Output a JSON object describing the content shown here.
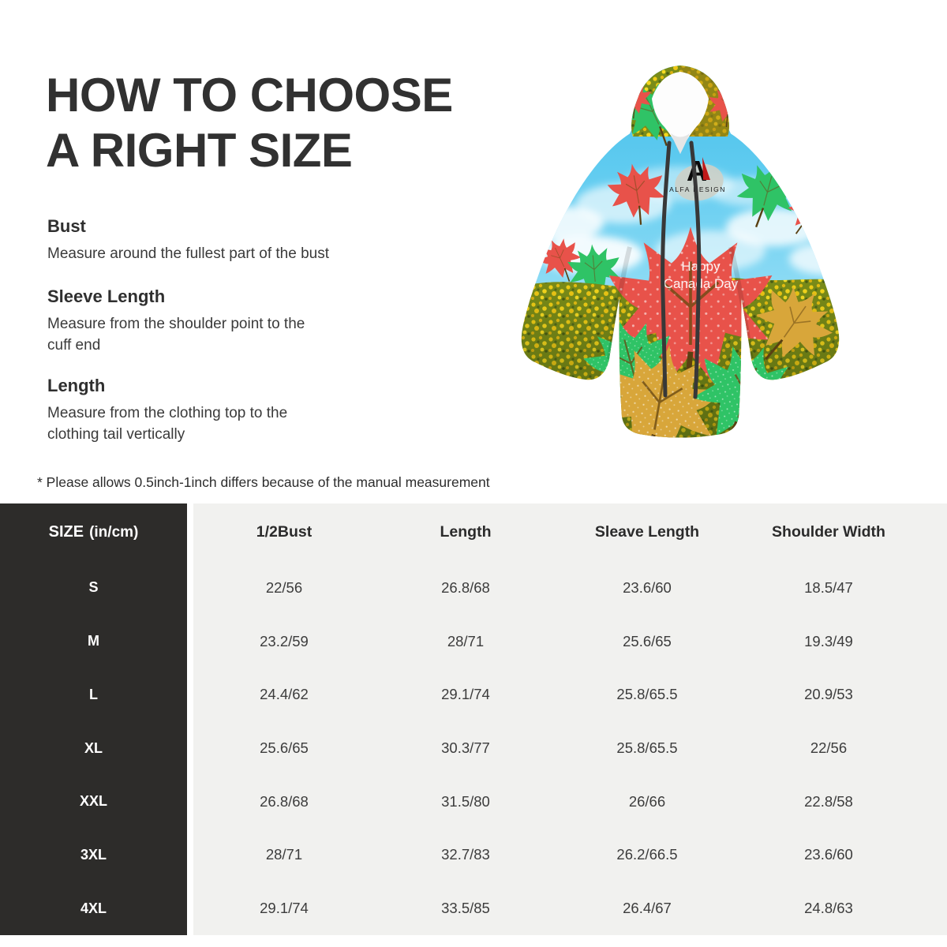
{
  "guide": {
    "title_line1": "HOW TO CHOOSE",
    "title_line2": "A RIGHT SIZE",
    "sections": [
      {
        "heading": "Bust",
        "lines": [
          "Measure around the fullest part of the bust"
        ]
      },
      {
        "heading": "Sleeve Length",
        "lines": [
          "Measure from the shoulder point to the",
          "cuff end"
        ]
      },
      {
        "heading": "Length",
        "lines": [
          "Measure from the clothing top to the",
          "clothing tail vertically"
        ]
      }
    ],
    "note": "* Please allows 0.5inch-1inch differs because of the  manual measurement"
  },
  "product_image": {
    "type": "hoodie-mockup",
    "print_text": {
      "line1": "Happy",
      "line2": "Canada Day"
    },
    "logo": {
      "monogram": "A",
      "brand": "ALFA DESIGN"
    },
    "palette": {
      "sky_blue": "#55c5ec",
      "field_yellow": "#eec915",
      "leaf_red": "#e8524a",
      "leaf_green": "#2fc366",
      "leaf_gold": "#d8a63a",
      "drawstring_gray": "#383838",
      "hood_gold": "#c9981c"
    }
  },
  "size_table": {
    "header": {
      "size_label": "SIZE",
      "size_unit": "(in/cm)",
      "columns": [
        "1/2Bust",
        "Length",
        "Sleave Length",
        "Shoulder Width"
      ]
    },
    "rows": [
      {
        "size": "S",
        "values": [
          "22/56",
          "26.8/68",
          "23.6/60",
          "18.5/47"
        ]
      },
      {
        "size": "M",
        "values": [
          "23.2/59",
          "28/71",
          "25.6/65",
          "19.3/49"
        ]
      },
      {
        "size": "L",
        "values": [
          "24.4/62",
          "29.1/74",
          "25.8/65.5",
          "20.9/53"
        ]
      },
      {
        "size": "XL",
        "values": [
          "25.6/65",
          "30.3/77",
          "25.8/65.5",
          "22/56"
        ]
      },
      {
        "size": "XXL",
        "values": [
          "26.8/68",
          "31.5/80",
          "26/66",
          "22.8/58"
        ]
      },
      {
        "size": "3XL",
        "values": [
          "28/71",
          "32.7/83",
          "26.2/66.5",
          "23.6/60"
        ]
      },
      {
        "size": "4XL",
        "values": [
          "29.1/74",
          "33.5/85",
          "26.4/67",
          "24.8/63"
        ]
      }
    ]
  },
  "colors": {
    "table_dark": "#2d2c2a",
    "table_gray": "#f1f1ef",
    "text_primary": "#313131",
    "text_secondary": "#3a3a3a",
    "header_text_on_dark": "#ffffff"
  }
}
